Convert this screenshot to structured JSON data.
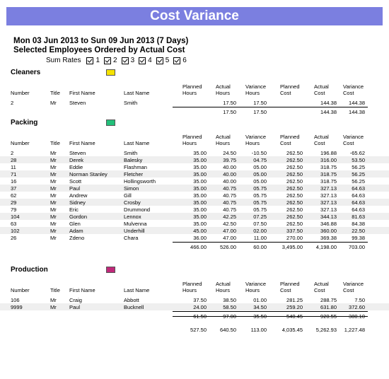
{
  "title": "Cost Variance",
  "date_range": "Mon 03 Jun 2013 to Sun 09 Jun 2013 (7 Days)",
  "subtitle": "Selected Employees Ordered by Actual Cost",
  "sum_rates": {
    "label": "Sum Rates",
    "options": [
      "1",
      "2",
      "3",
      "4",
      "5",
      "6"
    ]
  },
  "columns": {
    "number": "Number",
    "title": "Title",
    "first_name": "First Name",
    "last_name": "Last Name",
    "planned_hours": [
      "Planned",
      "Hours"
    ],
    "actual_hours": [
      "Actual",
      "Hours"
    ],
    "variance_hours": [
      "Variance",
      "Hours"
    ],
    "planned_cost": [
      "Planned",
      "Cost"
    ],
    "actual_cost": [
      "Actual",
      "Cost"
    ],
    "variance_cost": [
      "Variance",
      "Cost"
    ]
  },
  "sections": [
    {
      "name": "Cleaners",
      "color": "#f5e200",
      "rows": [
        [
          "2",
          "Mr",
          "Steven",
          "Smith",
          "",
          "17.50",
          "17.50",
          "",
          "144.38",
          "144.38"
        ]
      ],
      "subtotal": [
        "",
        "17.50",
        "17.50",
        "",
        "144.38",
        "144.38"
      ]
    },
    {
      "name": "Packing",
      "color": "#22c07a",
      "rows": [
        [
          "2",
          "Mr",
          "Steven",
          "Smith",
          "35.00",
          "24.50",
          "-10.50",
          "262.50",
          "196.88",
          "-65.62"
        ],
        [
          "28",
          "Mr",
          "Derek",
          "Balesky",
          "35.00",
          "39.75",
          "04.75",
          "262.50",
          "316.00",
          "53.50"
        ],
        [
          "11",
          "Mr",
          "Eddie",
          "Flashman",
          "35.00",
          "40.00",
          "05.00",
          "262.50",
          "318.75",
          "56.25"
        ],
        [
          "71",
          "Mr",
          "Norman Stanley",
          "Fletcher",
          "35.00",
          "40.00",
          "05.00",
          "262.50",
          "318.75",
          "56.25"
        ],
        [
          "16",
          "Mr",
          "Scott",
          "Hollingsworth",
          "35.00",
          "40.00",
          "05.00",
          "262.50",
          "318.75",
          "56.25"
        ],
        [
          "37",
          "Mr",
          "Paul",
          "Simon",
          "35.00",
          "40.75",
          "05.75",
          "262.50",
          "327.13",
          "64.63"
        ],
        [
          "62",
          "Mr",
          "Andrew",
          "Gill",
          "35.00",
          "40.75",
          "05.75",
          "262.50",
          "327.13",
          "64.63"
        ],
        [
          "29",
          "Mr",
          "Sidney",
          "Crosby",
          "35.00",
          "40.75",
          "05.75",
          "262.50",
          "327.13",
          "64.63"
        ],
        [
          "79",
          "Mr",
          "Eric",
          "Drummond",
          "35.00",
          "40.75",
          "05.75",
          "262.50",
          "327.13",
          "64.63"
        ],
        [
          "104",
          "Mr",
          "Gordon",
          "Lennox",
          "35.00",
          "42.25",
          "07.25",
          "262.50",
          "344.13",
          "81.63"
        ],
        [
          "63",
          "Mr",
          "Glen",
          "Mulvenna",
          "35.00",
          "42.50",
          "07.50",
          "262.50",
          "346.88",
          "84.38"
        ],
        [
          "102",
          "Mr",
          "Adam",
          "Underhill",
          "45.00",
          "47.00",
          "02.00",
          "337.50",
          "360.00",
          "22.50"
        ],
        [
          "26",
          "Mr",
          "Zdeno",
          "Chara",
          "36.00",
          "47.00",
          "11.00",
          "270.00",
          "369.38",
          "99.38"
        ]
      ],
      "subtotal": [
        "466.00",
        "526.00",
        "60.00",
        "3,495.00",
        "4,198.00",
        "703.00"
      ]
    },
    {
      "name": "Production",
      "color": "#c0287a",
      "rows": [
        [
          "106",
          "Mr",
          "Craig",
          "Abbott",
          "37.50",
          "38.50",
          "01.00",
          "281.25",
          "288.75",
          "7.50"
        ],
        [
          "9999",
          "Mr",
          "Paul",
          "Bucknell",
          "24.00",
          "58.50",
          "34.50",
          "259.20",
          "631.80",
          "372.60"
        ]
      ],
      "subtotal": [
        "61.50",
        "97.00",
        "35.50",
        "540.45",
        "920.55",
        "380.10"
      ]
    }
  ],
  "grand_total": [
    "527.50",
    "640.50",
    "113.00",
    "4,035.45",
    "5,262.93",
    "1,227.48"
  ]
}
